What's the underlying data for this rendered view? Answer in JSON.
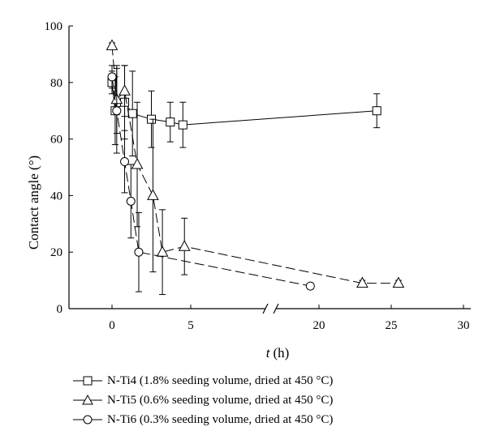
{
  "chart_data": {
    "type": "scatter",
    "xlabel_var": "t",
    "xlabel_unit": "(h)",
    "ylabel": "Contact angle (°)",
    "ylim": [
      0,
      100
    ],
    "yticks": [
      0,
      20,
      40,
      60,
      80,
      100
    ],
    "axis_break": true,
    "xticks": [
      {
        "label": "0",
        "value": 0
      },
      {
        "label": "5",
        "value": 5
      },
      {
        "label": "20",
        "value": 20
      },
      {
        "label": "25",
        "value": 25
      },
      {
        "label": "30",
        "value": 30
      }
    ],
    "legend_position": "bottom",
    "series": [
      {
        "name": "N-Ti4 (1.8% seeding volume, dried at 450 °C)",
        "marker": "square",
        "points": [
          {
            "x": 0,
            "y": 80,
            "err": 4
          },
          {
            "x": 0.2,
            "y": 70,
            "err": 12
          },
          {
            "x": 0.8,
            "y": 73,
            "err": 13
          },
          {
            "x": 1.3,
            "y": 69,
            "err": 15
          },
          {
            "x": 2.5,
            "y": 67,
            "err": 10
          },
          {
            "x": 3.7,
            "y": 66,
            "err": 7
          },
          {
            "x": 4.5,
            "y": 65,
            "err": 8
          },
          {
            "x": 24,
            "y": 70,
            "err": 6
          }
        ]
      },
      {
        "name": "N-Ti5 (0.6% seeding volume, dried at 450 °C)",
        "marker": "triangle",
        "points": [
          {
            "x": 0,
            "y": 93,
            "err": 1
          },
          {
            "x": 0.3,
            "y": 74,
            "err": 12
          },
          {
            "x": 0.8,
            "y": 77,
            "err": 9
          },
          {
            "x": 1.6,
            "y": 51,
            "err": 22
          },
          {
            "x": 2.6,
            "y": 40,
            "err": 27
          },
          {
            "x": 3.2,
            "y": 20,
            "err": 15
          },
          {
            "x": 4.6,
            "y": 22,
            "err": 10
          },
          {
            "x": 23,
            "y": 9,
            "err": 1
          },
          {
            "x": 25.5,
            "y": 9,
            "err": 1
          }
        ]
      },
      {
        "name": "N-Ti6 (0.3% seeding volume, dried at 450 °C)",
        "marker": "circle",
        "points": [
          {
            "x": 0,
            "y": 82,
            "err": 4
          },
          {
            "x": 0.3,
            "y": 70,
            "err": 15
          },
          {
            "x": 0.8,
            "y": 52,
            "err": 11
          },
          {
            "x": 1.2,
            "y": 38,
            "err": 13
          },
          {
            "x": 1.7,
            "y": 20,
            "err": 14
          },
          {
            "x": 19.4,
            "y": 8,
            "err": 1
          }
        ]
      }
    ]
  }
}
